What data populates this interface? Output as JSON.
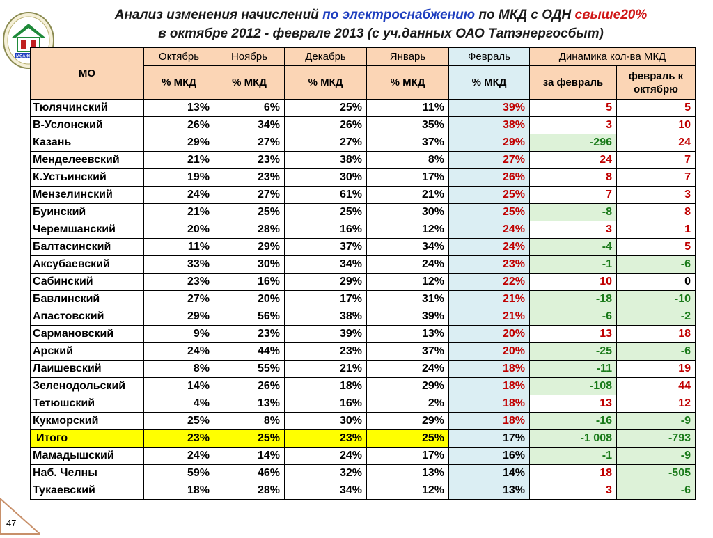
{
  "title": {
    "line1_part1": "Анализ изменения начислений ",
    "line1_part2": "по электроснабжению",
    "line1_part3": " по МКД с ОДН ",
    "line1_part4": "свыше20%",
    "line2": "в октябре 2012 - феврале 2013 (с уч.данных ОАО Татэнергосбыт)"
  },
  "logo": {
    "text": "МСАЖКХ РТ",
    "icon": "house-emblem-icon"
  },
  "table": {
    "header_mo": "МО",
    "months": [
      "Октябрь",
      "Ноябрь",
      "Декабрь",
      "Январь",
      "Февраль"
    ],
    "subheader": "% МКД",
    "dynamics": "Динамика кол-ва МКД",
    "dyn_feb": "за февраль",
    "dyn_octfeb": "февраль к октябрю",
    "rows": [
      {
        "name": "Тюлячинский",
        "v": [
          "13%",
          "6%",
          "25%",
          "11%",
          "39%"
        ],
        "d1": "5",
        "d2": "5"
      },
      {
        "name": "В-Услонский",
        "v": [
          "26%",
          "34%",
          "26%",
          "35%",
          "38%"
        ],
        "d1": "3",
        "d2": "10"
      },
      {
        "name": "Казань",
        "v": [
          "29%",
          "27%",
          "27%",
          "37%",
          "29%"
        ],
        "d1": "-296",
        "d2": "24"
      },
      {
        "name": "Менделеевский",
        "v": [
          "21%",
          "23%",
          "38%",
          "8%",
          "27%"
        ],
        "d1": "24",
        "d2": "7"
      },
      {
        "name": "К.Устьинский",
        "v": [
          "19%",
          "23%",
          "30%",
          "17%",
          "26%"
        ],
        "d1": "8",
        "d2": "7"
      },
      {
        "name": "Мензелинский",
        "v": [
          "24%",
          "27%",
          "61%",
          "21%",
          "25%"
        ],
        "d1": "7",
        "d2": "3"
      },
      {
        "name": "Буинский",
        "v": [
          "21%",
          "25%",
          "25%",
          "30%",
          "25%"
        ],
        "d1": "-8",
        "d2": "8"
      },
      {
        "name": "Черемшанский",
        "v": [
          "20%",
          "28%",
          "16%",
          "12%",
          "24%"
        ],
        "d1": "3",
        "d2": "1"
      },
      {
        "name": "Балтасинский",
        "v": [
          "11%",
          "29%",
          "37%",
          "34%",
          "24%"
        ],
        "d1": "-4",
        "d2": "5"
      },
      {
        "name": "Аксубаевский",
        "v": [
          "33%",
          "30%",
          "34%",
          "24%",
          "23%"
        ],
        "d1": "-1",
        "d2": "-6"
      },
      {
        "name": "Сабинский",
        "v": [
          "23%",
          "16%",
          "29%",
          "12%",
          "22%"
        ],
        "d1": "10",
        "d2": "0"
      },
      {
        "name": "Бавлинский",
        "v": [
          "27%",
          "20%",
          "17%",
          "31%",
          "21%"
        ],
        "d1": "-18",
        "d2": "-10"
      },
      {
        "name": "Апастовский",
        "v": [
          "29%",
          "56%",
          "38%",
          "39%",
          "21%"
        ],
        "d1": "-6",
        "d2": "-2"
      },
      {
        "name": "Сармановский",
        "v": [
          "9%",
          "23%",
          "39%",
          "13%",
          "20%"
        ],
        "d1": "13",
        "d2": "18"
      },
      {
        "name": "Арский",
        "v": [
          "24%",
          "44%",
          "23%",
          "37%",
          "20%"
        ],
        "d1": "-25",
        "d2": "-6"
      },
      {
        "name": "Лаишевский",
        "v": [
          "8%",
          "55%",
          "21%",
          "24%",
          "18%"
        ],
        "d1": "-11",
        "d2": "19"
      },
      {
        "name": "Зеленодольский",
        "v": [
          "14%",
          "26%",
          "18%",
          "29%",
          "18%"
        ],
        "d1": "-108",
        "d2": "44"
      },
      {
        "name": "Тетюшский",
        "v": [
          "4%",
          "13%",
          "16%",
          "2%",
          "18%"
        ],
        "d1": "13",
        "d2": "12"
      },
      {
        "name": "Кукморский",
        "v": [
          "25%",
          "8%",
          "30%",
          "29%",
          "18%"
        ],
        "d1": "-16",
        "d2": "-9"
      },
      {
        "name": "Итого",
        "v": [
          "23%",
          "25%",
          "23%",
          "25%",
          "17%"
        ],
        "d1": "-1 008",
        "d2": "-793",
        "total": true
      },
      {
        "name": "Мамадышский",
        "v": [
          "24%",
          "14%",
          "24%",
          "17%",
          "16%"
        ],
        "d1": "-1",
        "d2": "-9"
      },
      {
        "name": "Наб. Челны",
        "v": [
          "59%",
          "46%",
          "32%",
          "13%",
          "14%"
        ],
        "d1": "18",
        "d2": "-505"
      },
      {
        "name": "Тукаевский",
        "v": [
          "18%",
          "28%",
          "34%",
          "12%",
          "13%"
        ],
        "d1": "3",
        "d2": "-6"
      }
    ]
  },
  "page_number": "47"
}
